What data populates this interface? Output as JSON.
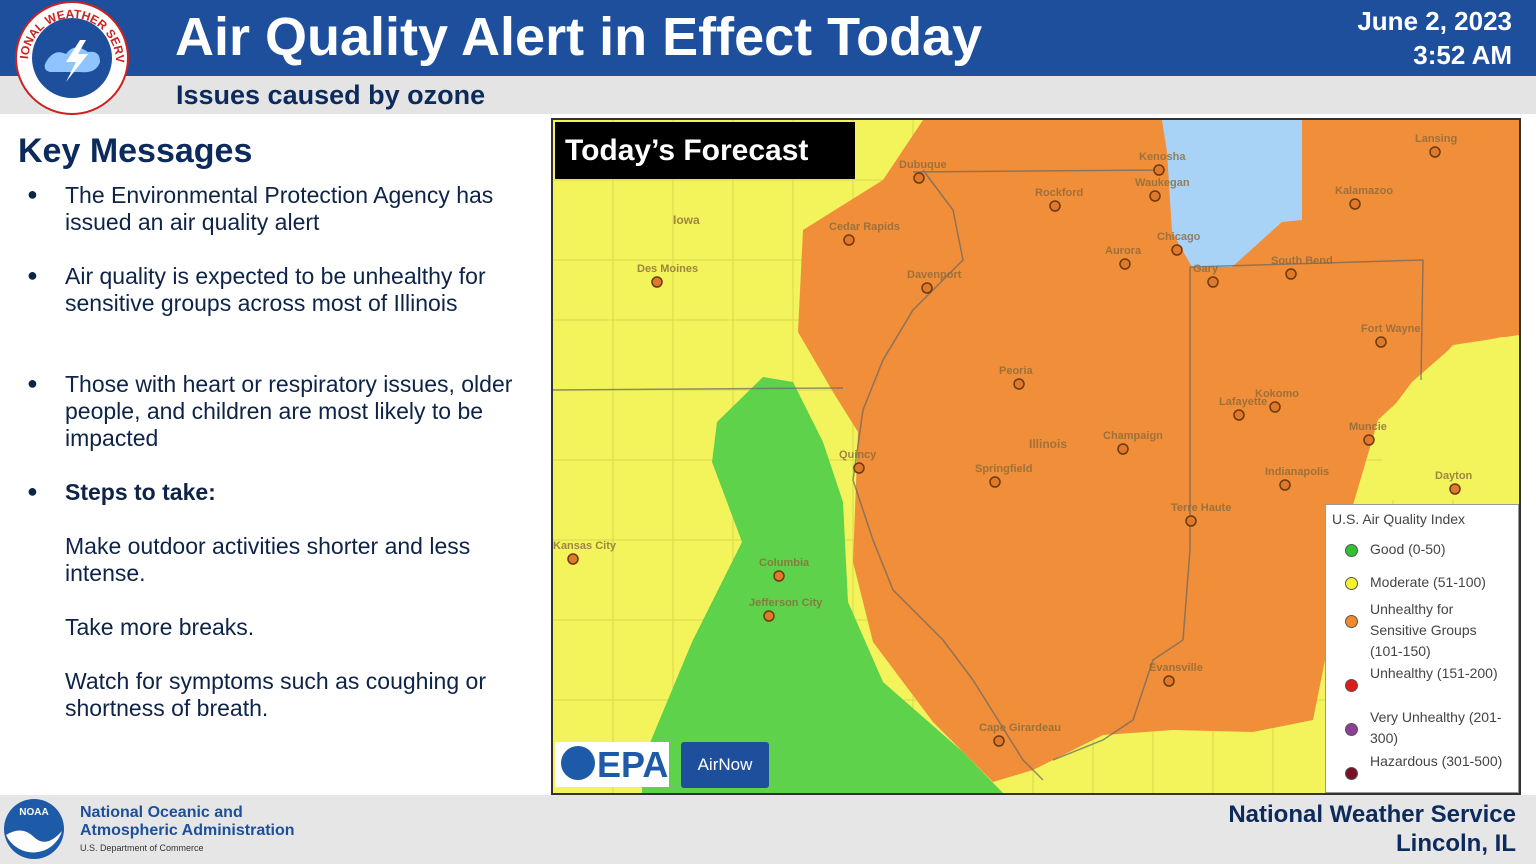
{
  "header": {
    "logo_text": "NATIONAL WEATHER SERVICE",
    "title": "Air Quality Alert in Effect Today",
    "subtitle": "Issues caused by ozone",
    "date": "June 2, 2023",
    "time": "3:52 AM"
  },
  "key_messages": {
    "heading": "Key Messages",
    "bullets": [
      "The Environmental Protection Agency has issued an air quality alert",
      "Air quality is expected to be unhealthy for sensitive groups across most of Illinois",
      "Those with heart or respiratory issues, older people, and children are most likely to be impacted"
    ],
    "steps": {
      "heading": "Steps to take:",
      "items": [
        "Make outdoor activities shorter and less intense.",
        "Take more breaks.",
        "Watch for symptoms such as coughing or shortness of breath."
      ]
    }
  },
  "map": {
    "label": "Today’s Forecast",
    "places": [
      "Des Moines",
      "Iowa",
      "Cedar Rapids",
      "Dubuque",
      "Davenport",
      "Rockford",
      "Kenosha",
      "Waukegan",
      "Aurora",
      "Chicago",
      "Gary",
      "South Bend",
      "Kalamazoo",
      "Lansing",
      "Fort Wayne",
      "Peoria",
      "Illinois",
      "Champaign",
      "Springfield",
      "Quincy",
      "Lafayette",
      "Kokomo",
      "Muncie",
      "Indianapolis",
      "Dayton",
      "Terre Haute",
      "Kansas City",
      "Columbia",
      "Jefferson City",
      "Evansville",
      "Cape Girardeau"
    ],
    "legend": {
      "title": "U.S. Air Quality Index",
      "items": [
        {
          "label": "Good (0-50)",
          "color": "#2fc42f"
        },
        {
          "label": "Moderate (51-100)",
          "color": "#f2f230"
        },
        {
          "label": "Unhealthy for Sensitive Groups (101-150)",
          "color": "#f08a2c"
        },
        {
          "label": "Unhealthy (151-200)",
          "color": "#e01b1b"
        },
        {
          "label": "Very Unhealthy (201-300)",
          "color": "#8e3f97"
        },
        {
          "label": "Hazardous (301-500)",
          "color": "#7a0f23"
        }
      ]
    },
    "logos": [
      "EPA",
      "AirNow"
    ]
  },
  "footer": {
    "logo_text": "NOAA",
    "agency": [
      "National Oceanic and",
      "Atmospheric Administration"
    ],
    "department": "U.S. Department of Commerce",
    "office": [
      "National Weather Service",
      "Lincoln, IL"
    ]
  }
}
